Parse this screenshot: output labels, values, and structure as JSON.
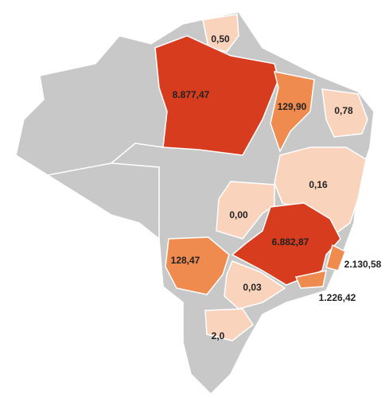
{
  "regions": [
    {
      "label": "0,50",
      "value": 0.5,
      "color": "#fad3bd"
    },
    {
      "label": "8.877,47",
      "value": 8877.47,
      "color": "#d63c1d"
    },
    {
      "label": "129,90",
      "value": 129.9,
      "color": "#f08b50"
    },
    {
      "label": "0,78",
      "value": 0.78,
      "color": "#fad3bd"
    },
    {
      "label": "0,16",
      "value": 0.16,
      "color": "#fad3bd"
    },
    {
      "label": "0,00",
      "value": 0,
      "color": "#fad3bd"
    },
    {
      "label": "6.882,87",
      "value": 6882.87,
      "color": "#d63c1d"
    },
    {
      "label": "128,47",
      "value": 128.47,
      "color": "#f08b50"
    },
    {
      "label": "0,03",
      "value": 0.03,
      "color": "#fad3bd"
    },
    {
      "label": "2.130,58",
      "value": 2130.58,
      "color": "#f08b50"
    },
    {
      "label": "1.226,42",
      "value": 1226.42,
      "color": "#f08b50"
    },
    {
      "label": "2,0",
      "value": 2,
      "color": "#fad3bd"
    }
  ]
}
